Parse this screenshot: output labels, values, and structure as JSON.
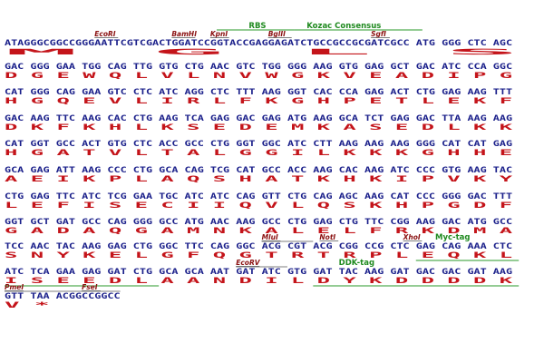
{
  "rows": [
    {
      "nt": "ATAGGGCGGCCGGGAATTCGTCGACTGGATCCGGTACCGAGGAGATCTGCCGCCGCGATCGCC ATG GGG CTC AGC",
      "aa": "                                                                  M   G   L   S "
    },
    {
      "nt": "GAC GGG GAA TGG CAG TTG GTG CTG AAC GTC TGG GGG AAG GTG GAG GCT GAC ATC CCA GGC",
      "aa": " D   G   E   W   Q   L   V   L   N   V   W   G   K   V   E   A   D   I   P   G "
    },
    {
      "nt": "CAT GGG CAG GAA GTC CTC ATC AGG CTC TTT AAG GGT CAC CCA GAG ACT CTG GAG AAG TTT",
      "aa": " H   G   Q   E   V   L   I   R   L   F   K   G   H   P   E   T   L   E   K   F "
    },
    {
      "nt": "GAC AAG TTC AAG CAC CTG AAG TCA GAG GAC GAG ATG AAG GCA TCT GAG GAC TTA AAG AAG",
      "aa": " D   K   F   K   H   L   K   S   E   D   E   M   K   A   S   E   D   L   K   K "
    },
    {
      "nt": "CAT GGT GCC ACT GTG CTC ACC GCC CTG GGT GGC ATC CTT AAG AAG AAG GGG CAT CAT GAG",
      "aa": " H   G   A   T   V   L   T   A   L   G   G   I   L   K   K   K   G   H   H   E "
    },
    {
      "nt": "GCA GAG ATT AAG CCC CTG GCA CAG TCG CAT GCC ACC AAG CAC AAG ATC CCC GTG AAG TAC",
      "aa": " A   E   I   K   P   L   A   Q   S   H   A   T   K   H   K   I   P   V   K   Y "
    },
    {
      "nt": "CTG GAG TTC ATC TCG GAA TGC ATC ATC CAG GTT CTG CAG AGC AAG CAT CCC GGG GAC TTT",
      "aa": " L   E   F   I   S   E   C   I   I   Q   V   L   Q   S   K   H   P   G   D   F "
    },
    {
      "nt": "GGT GCT GAT GCC CAG GGG GCC ATG AAC AAG GCC CTG GAG CTG TTC CGG AAG GAC ATG GCC",
      "aa": " G   A   D   A   Q   G   A   M   N   K   A   L   E   L   F   R   K   D   M   A "
    },
    {
      "nt": "TCC AAC TAC AAG GAG CTG GGC TTC CAG GGC ACG CGT ACG CGG CCG CTC GAG CAG AAA CTC",
      "aa": " S   N   Y   K   E   L   G   F   Q   G   T   R   T   R   P   L   E   Q   K   L "
    },
    {
      "nt": "ATC TCA GAA GAG GAT CTG GCA GCA AAT GAT ATC GTG GAT TAC AAG GAT GAC GAC GAT AAG",
      "aa": " I   S   E   E   D   L   A   A   N   D   I   L   D   Y   K   D   D   D   D   K "
    },
    {
      "nt": "GTT TAA ACGGCCGGCC",
      "aa": " V   * "
    }
  ],
  "sites": [
    {
      "label": "EcoRI",
      "row": 0,
      "col": 14
    },
    {
      "label": "BamHI",
      "row": 0,
      "col": 26
    },
    {
      "label": "KpnI",
      "row": 0,
      "col": 32
    },
    {
      "label": "BglII",
      "row": 0,
      "col": 41
    },
    {
      "label": "SgfI",
      "row": 0,
      "col": 57
    },
    {
      "label": "MluI",
      "row": 8,
      "col": 40
    },
    {
      "label": "NotI",
      "row": 8,
      "col": 49
    },
    {
      "label": "XhoI",
      "row": 8,
      "col": 62
    },
    {
      "label": "EcoRV",
      "row": 9,
      "col": 36
    },
    {
      "label": "PmeI",
      "row": 10,
      "col": 0
    },
    {
      "label": "FseI",
      "row": 10,
      "col": 12
    }
  ],
  "features": [
    {
      "label": "RBS",
      "row": 0,
      "start": 33,
      "end": 45,
      "label_col": 38
    },
    {
      "label": "Kozac Consensus",
      "row": 0,
      "start": 45,
      "end": 65,
      "label_col": 47
    },
    {
      "label": "Myc-tag",
      "row": 8,
      "start": 64,
      "end": 80,
      "label_col": 67
    },
    {
      "label": "DDK-tag",
      "row": 9,
      "start": 48,
      "end": 80,
      "label_col": 52
    }
  ],
  "underlines": [
    {
      "row": 8,
      "start": 40,
      "end": 48
    },
    {
      "row": 9,
      "start": 36,
      "end": 44
    },
    {
      "row": 10,
      "start": 0,
      "end": 7
    },
    {
      "row": 10,
      "start": 7,
      "end": 18
    }
  ],
  "green_bars": [
    {
      "row": 9,
      "start": 0,
      "end": 24
    }
  ]
}
